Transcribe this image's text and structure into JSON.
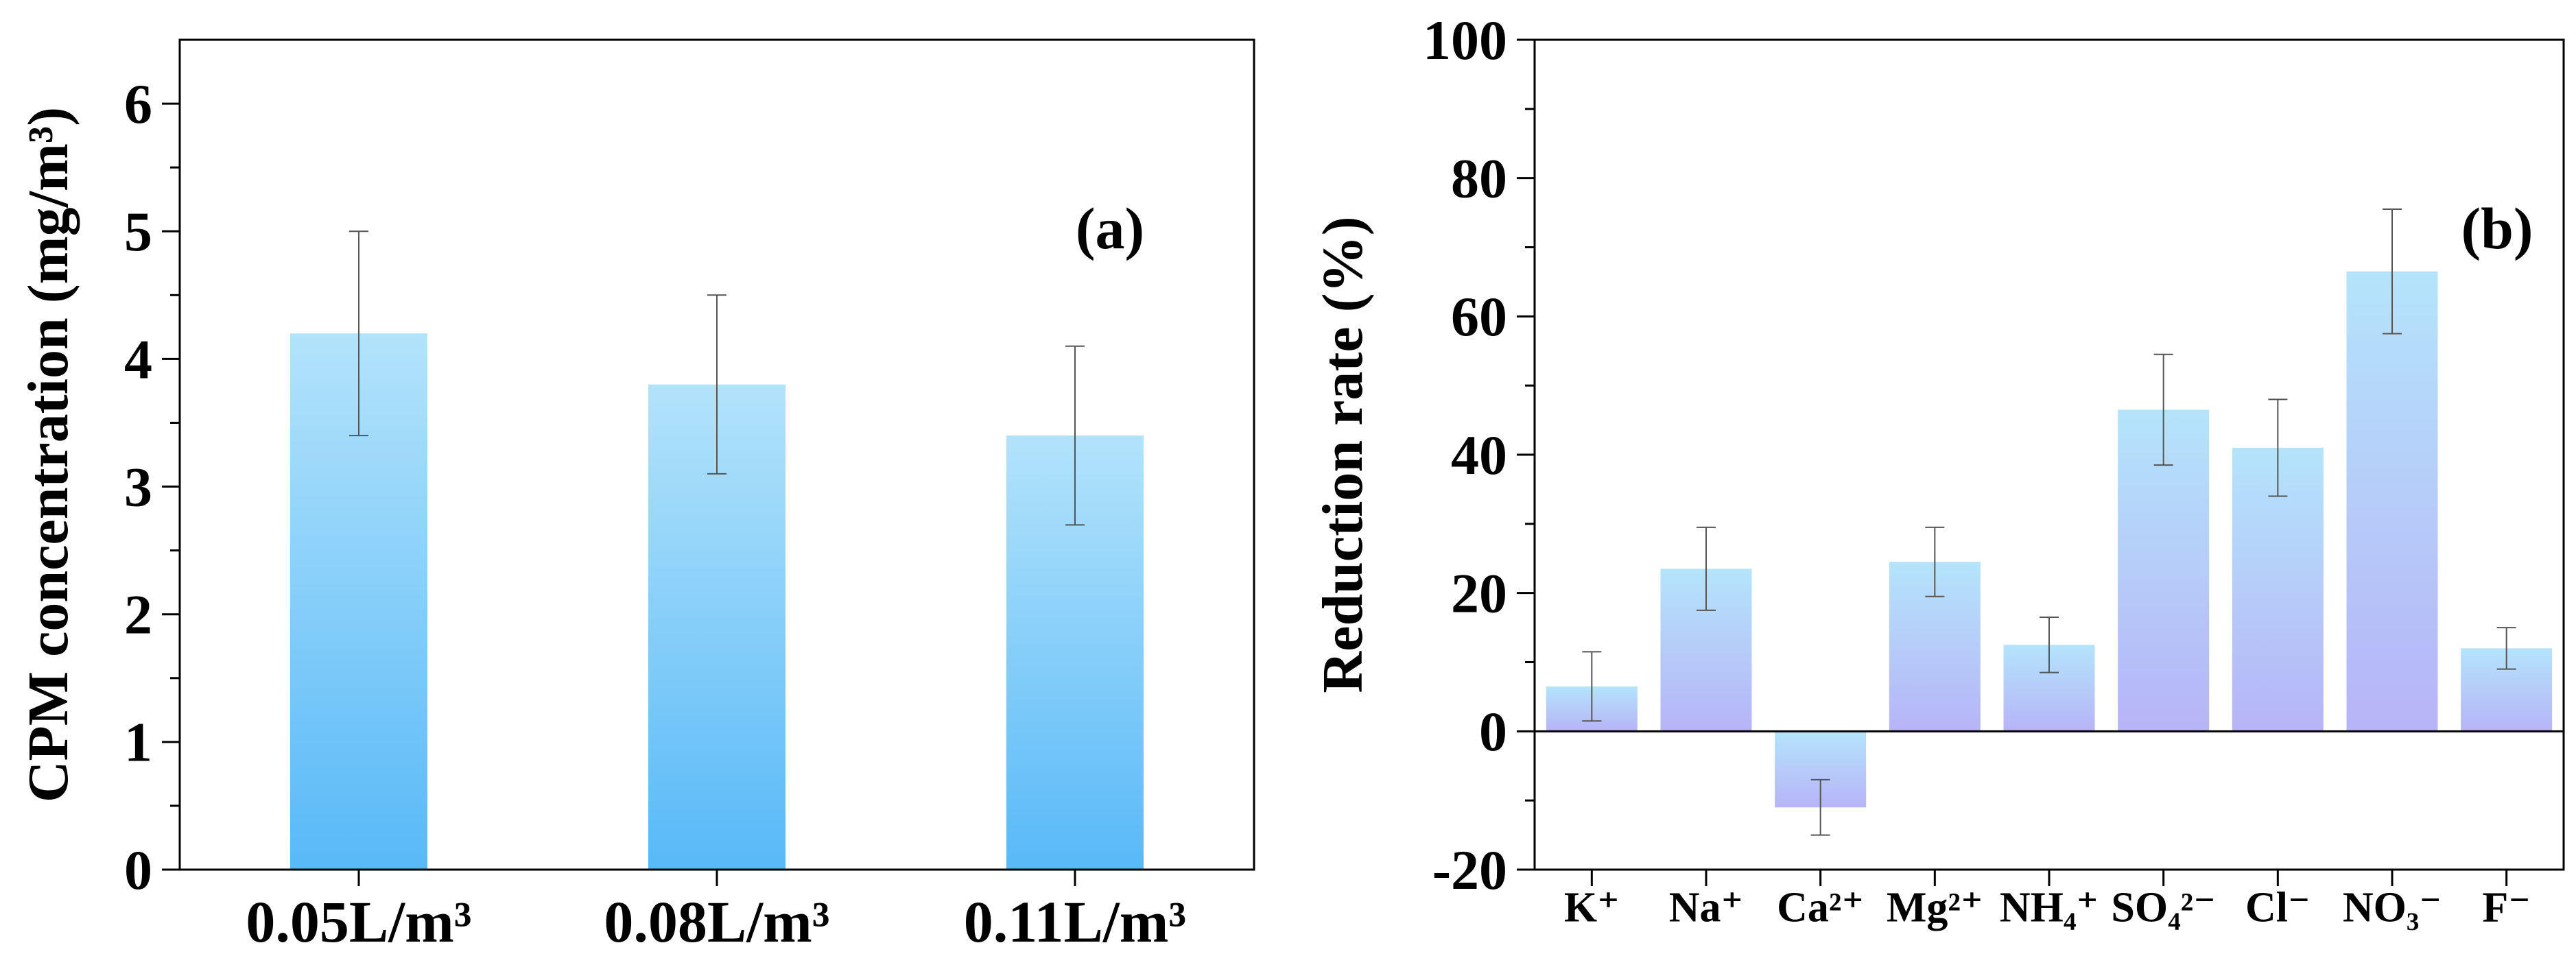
{
  "chart_data": [
    {
      "type": "bar",
      "panel_label": "(a)",
      "ylabel": "CPM concentration (mg/m³)",
      "xlabel": "",
      "ylim": [
        0,
        6.5
      ],
      "yticks": [
        0,
        1,
        2,
        3,
        4,
        5,
        6
      ],
      "categories": [
        "0.05L/m³",
        "0.08L/m³",
        "0.11L/m³"
      ],
      "values": [
        4.2,
        3.8,
        3.4
      ],
      "errors_low": [
        3.4,
        3.1,
        2.7
      ],
      "errors_high": [
        5.0,
        4.5,
        4.1
      ],
      "grid": false,
      "colors": {
        "bar_top": "#b3e3fb",
        "bar_bottom": "#58b9f8",
        "error": "#555555"
      }
    },
    {
      "type": "bar",
      "panel_label": "(b)",
      "ylabel": "Reduction rate (%)",
      "xlabel": "",
      "ylim": [
        -20,
        100
      ],
      "yticks": [
        -20,
        0,
        20,
        40,
        60,
        80,
        100
      ],
      "categories": [
        "K⁺",
        "Na⁺",
        "Ca²⁺",
        "Mg²⁺",
        "NH₄⁺",
        "SO₄²⁻",
        "Cl⁻",
        "NO₃⁻",
        "F⁻"
      ],
      "values": [
        6.5,
        23.5,
        -11,
        24.5,
        12.5,
        46.5,
        41,
        66.5,
        12
      ],
      "errors_low": [
        1.5,
        17.5,
        -15,
        19.5,
        8.5,
        38.5,
        34,
        57.5,
        9
      ],
      "errors_high": [
        11.5,
        29.5,
        -7,
        29.5,
        16.5,
        54.5,
        48,
        75.5,
        15
      ],
      "grid": false,
      "colors": {
        "bar_top": "#b4e4fb",
        "bar_bottom": "#b7b4f7",
        "error": "#555555"
      }
    }
  ]
}
